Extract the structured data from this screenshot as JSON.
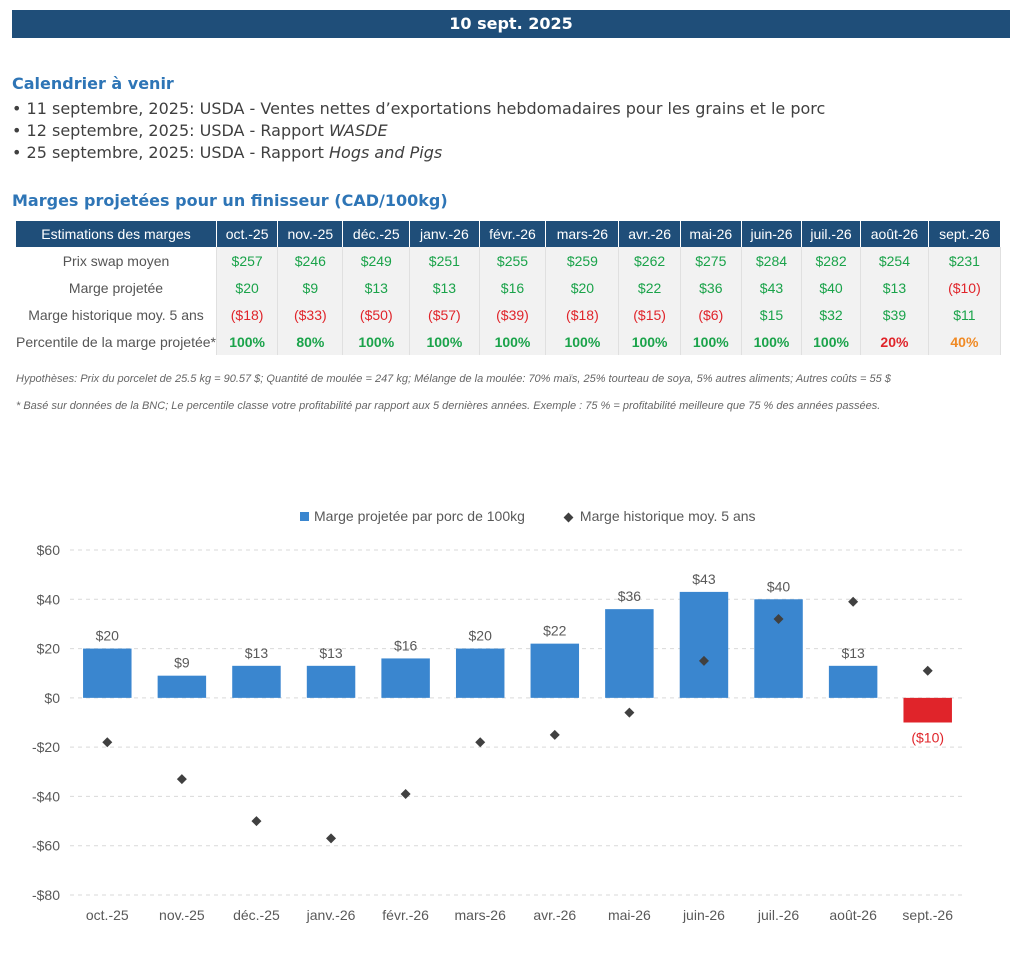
{
  "banner": {
    "date": "10 sept. 2025"
  },
  "calendar": {
    "title": "Calendrier à venir",
    "items": [
      {
        "prefix": "11 septembre, 2025: USDA - Ventes nettes d’exportations hebdomadaires pour les grains et le porc",
        "emph": ""
      },
      {
        "prefix": "12 septembre, 2025: USDA - Rapport ",
        "emph": "WASDE"
      },
      {
        "prefix": "25 septembre, 2025: USDA - Rapport ",
        "emph": "Hogs and Pigs"
      }
    ]
  },
  "margins": {
    "title": "Marges projetées pour un finisseur (CAD/100kg)",
    "header_label": "Estimations des marges",
    "months": [
      "oct.-25",
      "nov.-25",
      "déc.-25",
      "janv.-26",
      "févr.-26",
      "mars-26",
      "avr.-26",
      "mai-26",
      "juin-26",
      "juil.-26",
      "août-26",
      "sept.-26"
    ],
    "rows": [
      {
        "label": "Prix swap moyen",
        "values": [
          "$257",
          "$246",
          "$249",
          "$251",
          "$255",
          "$259",
          "$262",
          "$275",
          "$284",
          "$282",
          "$254",
          "$231"
        ]
      },
      {
        "label": "Marge projetée",
        "values": [
          "$20",
          "$9",
          "$13",
          "$13",
          "$16",
          "$20",
          "$22",
          "$36",
          "$43",
          "$40",
          "$13",
          "($10)"
        ]
      },
      {
        "label": "Marge historique moy. 5 ans",
        "values": [
          "($18)",
          "($33)",
          "($50)",
          "($57)",
          "($39)",
          "($18)",
          "($15)",
          "($6)",
          "$15",
          "$32",
          "$39",
          "$11"
        ]
      },
      {
        "label": "Percentile de la marge projetée*",
        "values": [
          "100%",
          "80%",
          "100%",
          "100%",
          "100%",
          "100%",
          "100%",
          "100%",
          "100%",
          "100%",
          "20%",
          "40%"
        ]
      }
    ],
    "assumptions": "Hypothèses: Prix du porcelet de 25.5 kg = 90.57 $; Quantité de moulée = 247 kg; Mélange de la moulée: 70% maïs, 25% tourteau de soya, 5% autres aliments; Autres coûts = 55 $",
    "footnote": "* Basé sur données de la BNC; Le percentile classe votre profitabilité par rapport aux 5 dernières années. Exemple : 75 % = profitabilité meilleure que 75 % des années passées."
  },
  "chart_data": {
    "type": "bar",
    "categories": [
      "oct.-25",
      "nov.-25",
      "déc.-25",
      "janv.-26",
      "févr.-26",
      "mars-26",
      "avr.-26",
      "mai-26",
      "juin-26",
      "juil.-26",
      "août-26",
      "sept.-26"
    ],
    "series": [
      {
        "name": "Marge projetée par porc de 100kg",
        "type": "bar",
        "values": [
          20,
          9,
          13,
          13,
          16,
          20,
          22,
          36,
          43,
          40,
          13,
          -10
        ],
        "labels": [
          "$20",
          "$9",
          "$13",
          "$13",
          "$16",
          "$20",
          "$22",
          "$36",
          "$43",
          "$40",
          "$13",
          "($10)"
        ]
      },
      {
        "name": "Marge historique moy. 5 ans",
        "type": "scatter",
        "values": [
          -18,
          -33,
          -50,
          -57,
          -39,
          -18,
          -15,
          -6,
          15,
          32,
          39,
          11
        ]
      }
    ],
    "ylim": [
      -80,
      60
    ],
    "yticks": [
      60,
      40,
      20,
      0,
      -20,
      -40,
      -60,
      -80
    ],
    "ytick_labels": [
      "$60",
      "$40",
      "$20",
      "$0",
      "-$20",
      "-$40",
      "-$60",
      "-$80"
    ],
    "legend_position": "top-center",
    "grid": true,
    "colors": {
      "bar": "#3a86cf",
      "bar_negative": "#e0242a",
      "marker": "#404040"
    }
  }
}
